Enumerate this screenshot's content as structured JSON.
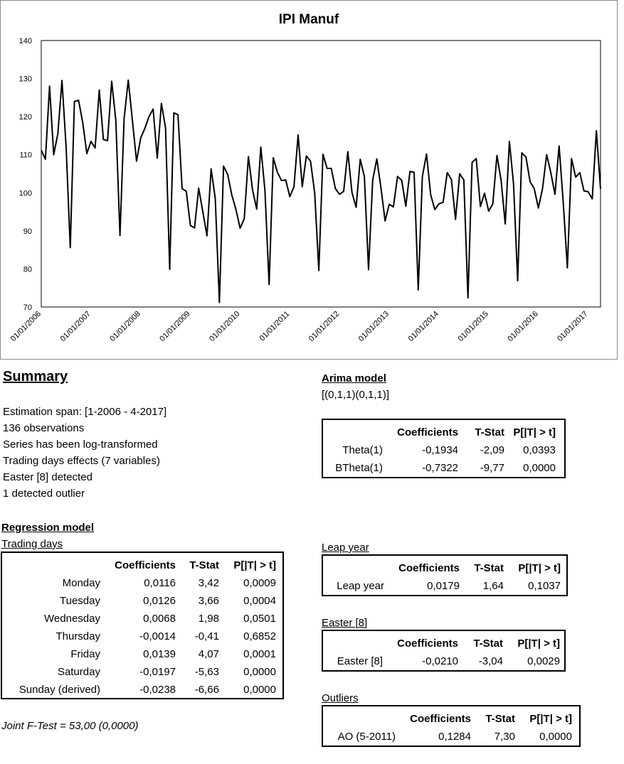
{
  "chart_data": {
    "type": "line",
    "title": "IPI Manuf",
    "xlabel": "",
    "ylabel": "",
    "ylim": [
      70,
      140
    ],
    "yticks": [
      70,
      80,
      90,
      100,
      110,
      120,
      130,
      140
    ],
    "xticks": [
      "01/01/2006",
      "01/01/2007",
      "01/01/2008",
      "01/01/2009",
      "01/01/2010",
      "01/01/2011",
      "01/01/2012",
      "01/01/2013",
      "01/01/2014",
      "01/01/2015",
      "01/01/2016",
      "01/01/2017"
    ],
    "x_start": "2006-01",
    "x_end": "2017-04",
    "frequency": "monthly",
    "grid": false,
    "series": [
      {
        "values": [
          111.2,
          108.8,
          128.0,
          110.0,
          115.5,
          129.5,
          112.0,
          85.6,
          124.0,
          124.3,
          118.5,
          110.3,
          113.5,
          111.8,
          127.0,
          114.0,
          113.7,
          129.3,
          119.0,
          88.8,
          119.5,
          129.6,
          119.0,
          108.3,
          114.4,
          116.9,
          120.0,
          122.0,
          109.1,
          123.5,
          117.0,
          79.9,
          121.0,
          120.5,
          101.1,
          100.4,
          91.4,
          90.8,
          101.2,
          95.0,
          88.7,
          106.3,
          98.5,
          71.2,
          107.0,
          104.8,
          99.4,
          95.6,
          90.7,
          93.2,
          109.5,
          100.8,
          95.7,
          112.0,
          100.5,
          75.9,
          109.2,
          105.4,
          103.2,
          103.4,
          99.0,
          101.6,
          115.2,
          101.6,
          109.7,
          108.3,
          100.0,
          79.6,
          110.1,
          106.4,
          106.4,
          101.1,
          99.6,
          100.4,
          110.8,
          100.1,
          96.2,
          108.8,
          104.2,
          79.8,
          103.3,
          108.9,
          101.3,
          92.6,
          97.0,
          96.3,
          104.3,
          103.3,
          96.5,
          105.6,
          105.4,
          74.5,
          104.3,
          110.2,
          99.5,
          95.6,
          97.1,
          97.5,
          105.3,
          103.5,
          93.0,
          105.0,
          103.4,
          72.4,
          108.0,
          109.0,
          96.4,
          99.9,
          95.2,
          97.1,
          109.8,
          103.3,
          91.8,
          113.5,
          102.4,
          76.9,
          110.5,
          109.4,
          102.9,
          101.1,
          96.0,
          101.1,
          110.0,
          105.3,
          99.6,
          112.3,
          97.5,
          80.3,
          109.0,
          104.1,
          105.3,
          100.5,
          100.3,
          98.4,
          116.3,
          101.0
        ]
      }
    ]
  },
  "summary": {
    "title": "Summary",
    "lines": [
      "Estimation span: [1-2006 - 4-2017]",
      "136 observations",
      "Series has been log-transformed",
      "Trading days effects (7 variables)",
      "Easter [8] detected",
      "1 detected outlier"
    ]
  },
  "arima": {
    "title": "Arima model",
    "spec": "[(0,1,1)(0,1,1)]",
    "headers": [
      "Coefficients",
      "T-Stat",
      "P[|T| > t]"
    ],
    "rows": [
      {
        "label": "Theta(1)",
        "coef": "-0,1934",
        "tstat": "-2,09",
        "p": "0,0393"
      },
      {
        "label": "BTheta(1)",
        "coef": "-0,7322",
        "tstat": "-9,77",
        "p": "0,0000"
      }
    ]
  },
  "regression": {
    "title": "Regression model",
    "trading_days": {
      "title": "Trading days",
      "headers": [
        "Coefficients",
        "T-Stat",
        "P[|T| > t]"
      ],
      "rows": [
        {
          "label": "Monday",
          "coef": "0,0116",
          "tstat": "3,42",
          "p": "0,0009"
        },
        {
          "label": "Tuesday",
          "coef": "0,0126",
          "tstat": "3,66",
          "p": "0,0004"
        },
        {
          "label": "Wednesday",
          "coef": "0,0068",
          "tstat": "1,98",
          "p": "0,0501"
        },
        {
          "label": "Thursday",
          "coef": "-0,0014",
          "tstat": "-0,41",
          "p": "0,6852"
        },
        {
          "label": "Friday",
          "coef": "0,0139",
          "tstat": "4,07",
          "p": "0,0001"
        },
        {
          "label": "Saturday",
          "coef": "-0,0197",
          "tstat": "-5,63",
          "p": "0,0000"
        },
        {
          "label": "Sunday (derived)",
          "coef": "-0,0238",
          "tstat": "-6,66",
          "p": "0,0000"
        }
      ]
    },
    "joint_f_test": "Joint F-Test = 53,00 (0,0000)"
  },
  "leap_year": {
    "title": "Leap year",
    "headers": [
      "Coefficients",
      "T-Stat",
      "P[|T| > t]"
    ],
    "rows": [
      {
        "label": "Leap year",
        "coef": "0,0179",
        "tstat": "1,64",
        "p": "0,1037"
      }
    ]
  },
  "easter": {
    "title": "Easter [8]",
    "headers": [
      "Coefficients",
      "T-Stat",
      "P[|T| > t]"
    ],
    "rows": [
      {
        "label": "Easter [8]",
        "coef": "-0,0210",
        "tstat": "-3,04",
        "p": "0,0029"
      }
    ]
  },
  "outliers": {
    "title": "Outliers",
    "headers": [
      "Coefficients",
      "T-Stat",
      "P[|T| > t]"
    ],
    "rows": [
      {
        "label": "AO (5-2011)",
        "coef": "0,1284",
        "tstat": "7,30",
        "p": "0,0000"
      }
    ]
  }
}
